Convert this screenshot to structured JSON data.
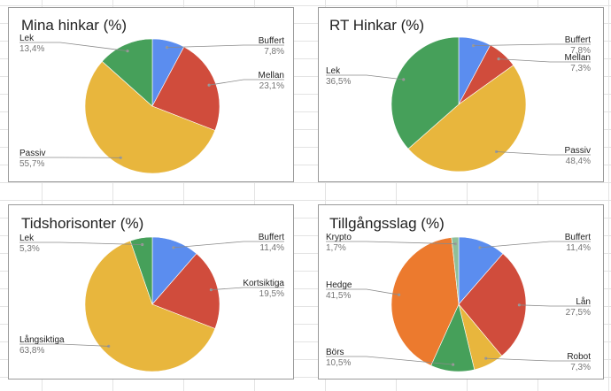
{
  "chart_data": [
    {
      "type": "pie",
      "title": "Mina hinkar (%)",
      "slices": [
        {
          "label": "Buffert",
          "value": 7.8,
          "value_text": "7,8%",
          "color": "#5b8def",
          "side": "right"
        },
        {
          "label": "Mellan",
          "value": 23.1,
          "value_text": "23,1%",
          "color": "#d04c3c",
          "side": "right"
        },
        {
          "label": "Passiv",
          "value": 55.7,
          "value_text": "55,7%",
          "color": "#e8b63d",
          "side": "left"
        },
        {
          "label": "Lek",
          "value": 13.4,
          "value_text": "13,4%",
          "color": "#46a05a",
          "side": "left"
        }
      ]
    },
    {
      "type": "pie",
      "title": "RT Hinkar (%)",
      "slices": [
        {
          "label": "Buffert",
          "value": 7.8,
          "value_text": "7,8%",
          "color": "#5b8def",
          "side": "right"
        },
        {
          "label": "Mellan",
          "value": 7.3,
          "value_text": "7,3%",
          "color": "#d04c3c",
          "side": "right"
        },
        {
          "label": "Passiv",
          "value": 48.4,
          "value_text": "48,4%",
          "color": "#e8b63d",
          "side": "right"
        },
        {
          "label": "Lek",
          "value": 36.5,
          "value_text": "36,5%",
          "color": "#46a05a",
          "side": "left"
        }
      ]
    },
    {
      "type": "pie",
      "title": "Tidshorisonter (%)",
      "slices": [
        {
          "label": "Buffert",
          "value": 11.4,
          "value_text": "11,4%",
          "color": "#5b8def",
          "side": "right"
        },
        {
          "label": "Kortsiktiga",
          "value": 19.5,
          "value_text": "19,5%",
          "color": "#d04c3c",
          "side": "right"
        },
        {
          "label": "Långsiktiga",
          "value": 63.8,
          "value_text": "63,8%",
          "color": "#e8b63d",
          "side": "left"
        },
        {
          "label": "Lek",
          "value": 5.3,
          "value_text": "5,3%",
          "color": "#46a05a",
          "side": "left"
        }
      ]
    },
    {
      "type": "pie",
      "title": "Tillgångsslag (%)",
      "slices": [
        {
          "label": "Buffert",
          "value": 11.4,
          "value_text": "11,4%",
          "color": "#5b8def",
          "side": "right"
        },
        {
          "label": "Lån",
          "value": 27.5,
          "value_text": "27,5%",
          "color": "#d04c3c",
          "side": "right"
        },
        {
          "label": "Robot",
          "value": 7.3,
          "value_text": "7,3%",
          "color": "#e8b63d",
          "side": "right"
        },
        {
          "label": "Börs",
          "value": 10.5,
          "value_text": "10,5%",
          "color": "#46a05a",
          "side": "left"
        },
        {
          "label": "Hedge",
          "value": 41.5,
          "value_text": "41,5%",
          "color": "#ec7a2e",
          "side": "left"
        },
        {
          "label": "Krypto",
          "value": 1.7,
          "value_text": "1,7%",
          "color": "#8fbf9a",
          "side": "left"
        }
      ]
    }
  ]
}
